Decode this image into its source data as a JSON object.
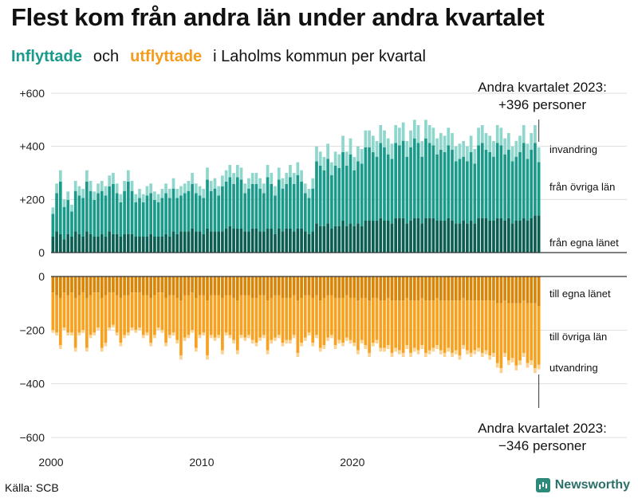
{
  "header": {
    "title": "Flest kom från andra län under andra kvartalet",
    "subtitle_in": "Inflyttade",
    "subtitle_and": "och",
    "subtitle_out": "utflyttade",
    "subtitle_rest": "i Laholms  kommun  per  kvartal"
  },
  "footer": {
    "source": "Källa: SCB",
    "brand": "Newsworthy"
  },
  "colors": {
    "in_own": "#0b5f52",
    "in_other": "#1a9a8a",
    "in_imm": "#8fd6cc",
    "out_own": "#d98508",
    "out_other": "#f7a11e",
    "out_emi": "#fbd28f"
  },
  "chart_data": {
    "type": "bar",
    "title": "Flest kom från andra län under andra kvartalet",
    "x_ticks": [
      "2000",
      "2010",
      "2020"
    ],
    "y_ticks_top": [
      "+600",
      "+400",
      "+200",
      "0"
    ],
    "y_ticks_bottom": [
      "0",
      "−200",
      "−400",
      "−600"
    ],
    "y_range_top": [
      0,
      600
    ],
    "y_range_bottom": [
      -600,
      0
    ],
    "start": "2000 Q1",
    "series_labels_in": [
      "invandring",
      "från övriga län",
      "från egna länet"
    ],
    "series_labels_out": [
      "till egna länet",
      "till övriga län",
      "utvandring"
    ],
    "callout_top": [
      "Andra kvartalet 2023:",
      "+396 personer"
    ],
    "callout_bottom": [
      "Andra kvartalet 2023:",
      "−346 personer"
    ],
    "inflyttade_total": [
      170,
      260,
      310,
      200,
      230,
      180,
      270,
      250,
      240,
      310,
      270,
      230,
      260,
      270,
      250,
      290,
      300,
      260,
      220,
      270,
      310,
      270,
      220,
      240,
      220,
      250,
      260,
      230,
      220,
      240,
      260,
      240,
      280,
      240,
      250,
      260,
      270,
      300,
      260,
      250,
      240,
      320,
      270,
      280,
      250,
      290,
      310,
      330,
      300,
      330,
      320,
      260,
      280,
      300,
      300,
      280,
      260,
      330,
      300,
      250,
      320,
      280,
      300,
      330,
      300,
      340,
      310,
      260,
      240,
      280,
      400,
      380,
      360,
      410,
      340,
      380,
      370,
      440,
      380,
      430,
      360,
      400,
      390,
      460,
      460,
      440,
      420,
      480,
      460,
      430,
      410,
      480,
      470,
      490,
      420,
      460,
      500,
      480,
      420,
      500,
      480,
      470,
      430,
      450,
      440,
      470,
      450,
      400,
      410,
      420,
      400,
      440,
      390,
      470,
      480,
      450,
      440,
      420,
      480,
      470,
      430,
      450,
      400,
      420,
      440,
      480,
      410,
      450,
      480,
      396
    ],
    "inflyttade_own": [
      60,
      80,
      70,
      50,
      70,
      60,
      80,
      70,
      60,
      80,
      70,
      60,
      60,
      70,
      60,
      80,
      70,
      70,
      60,
      70,
      70,
      70,
      60,
      60,
      60,
      60,
      70,
      60,
      60,
      60,
      70,
      60,
      80,
      70,
      80,
      80,
      80,
      90,
      80,
      80,
      70,
      90,
      80,
      80,
      80,
      80,
      90,
      100,
      90,
      90,
      90,
      80,
      80,
      90,
      90,
      80,
      80,
      90,
      90,
      70,
      90,
      80,
      90,
      90,
      80,
      90,
      90,
      80,
      70,
      80,
      110,
      100,
      100,
      110,
      90,
      100,
      100,
      120,
      100,
      110,
      100,
      110,
      100,
      120,
      120,
      120,
      120,
      130,
      120,
      120,
      110,
      130,
      130,
      130,
      110,
      120,
      130,
      130,
      110,
      130,
      130,
      130,
      120,
      120,
      120,
      130,
      120,
      110,
      110,
      120,
      110,
      120,
      110,
      130,
      130,
      130,
      120,
      120,
      130,
      130,
      120,
      130,
      110,
      120,
      120,
      130,
      120,
      130,
      140,
      140
    ],
    "utflyttade_total": [
      -210,
      -220,
      -270,
      -200,
      -220,
      -220,
      -280,
      -220,
      -210,
      -280,
      -230,
      -220,
      -200,
      -280,
      -260,
      -200,
      -190,
      -220,
      -260,
      -230,
      -220,
      -200,
      -210,
      -200,
      -230,
      -220,
      -260,
      -230,
      -200,
      -210,
      -260,
      -230,
      -220,
      -250,
      -310,
      -240,
      -230,
      -210,
      -280,
      -230,
      -220,
      -310,
      -230,
      -240,
      -230,
      -290,
      -220,
      -230,
      -250,
      -290,
      -230,
      -240,
      -230,
      -250,
      -260,
      -240,
      -230,
      -290,
      -250,
      -240,
      -230,
      -260,
      -250,
      -250,
      -230,
      -300,
      -260,
      -240,
      -220,
      -260,
      -230,
      -280,
      -270,
      -240,
      -230,
      -270,
      -250,
      -260,
      -240,
      -250,
      -260,
      -290,
      -250,
      -270,
      -300,
      -260,
      -250,
      -280,
      -280,
      -270,
      -300,
      -280,
      -290,
      -300,
      -270,
      -300,
      -280,
      -290,
      -270,
      -300,
      -290,
      -280,
      -270,
      -290,
      -300,
      -280,
      -300,
      -290,
      -310,
      -270,
      -290,
      -300,
      -290,
      -280,
      -300,
      -290,
      -310,
      -300,
      -340,
      -360,
      -300,
      -330,
      -320,
      -350,
      -330,
      -300,
      -340,
      -330,
      -360,
      -346
    ],
    "utflyttade_own": [
      -60,
      -70,
      -80,
      -60,
      -70,
      -60,
      -80,
      -70,
      -60,
      -80,
      -70,
      -60,
      -60,
      -80,
      -70,
      -60,
      -60,
      -70,
      -80,
      -70,
      -70,
      -60,
      -60,
      -60,
      -70,
      -70,
      -80,
      -70,
      -60,
      -60,
      -80,
      -70,
      -70,
      -80,
      -90,
      -70,
      -70,
      -60,
      -80,
      -70,
      -70,
      -90,
      -70,
      -70,
      -70,
      -80,
      -70,
      -70,
      -80,
      -90,
      -70,
      -70,
      -70,
      -80,
      -80,
      -70,
      -70,
      -90,
      -80,
      -70,
      -70,
      -80,
      -80,
      -80,
      -70,
      -90,
      -80,
      -70,
      -70,
      -80,
      -70,
      -90,
      -80,
      -70,
      -70,
      -80,
      -80,
      -80,
      -70,
      -80,
      -80,
      -90,
      -80,
      -80,
      -90,
      -80,
      -80,
      -90,
      -90,
      -80,
      -90,
      -90,
      -90,
      -90,
      -80,
      -90,
      -90,
      -90,
      -80,
      -90,
      -90,
      -90,
      -80,
      -90,
      -90,
      -90,
      -90,
      -90,
      -90,
      -80,
      -90,
      -90,
      -90,
      -90,
      -90,
      -90,
      -90,
      -90,
      -100,
      -100,
      -90,
      -100,
      -100,
      -100,
      -100,
      -90,
      -100,
      -100,
      -100,
      -110
    ]
  }
}
